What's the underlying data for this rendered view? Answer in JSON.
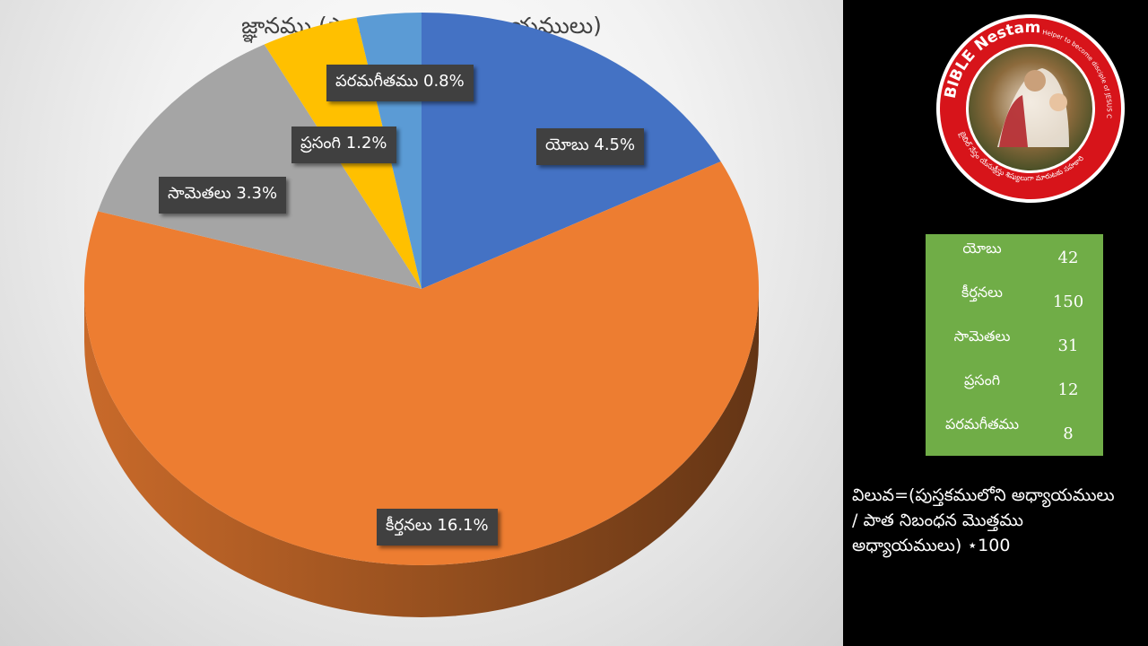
{
  "chart_data": {
    "type": "pie",
    "title": "జ్ఞానము (పాత నిబంధన అధ్యాయములు)",
    "categories": [
      "యోబు",
      "కీర్తనలు",
      "సామెతలు",
      "ప్రసంగి",
      "పరమగీతము"
    ],
    "values": [
      4.5,
      16.1,
      3.3,
      1.2,
      0.8
    ],
    "data_labels": [
      "యోబు 4.5%",
      "కీర్తనలు 16.1%",
      "సామెతలు 3.3%",
      "ప్రసంగి 1.2%",
      "పరమగీతము 0.8%"
    ],
    "colors": [
      "#4472c4",
      "#ed7d31",
      "#a5a5a5",
      "#ffc000",
      "#5b9bd5"
    ]
  },
  "legend_table": {
    "rows": [
      {
        "name": "యోబు",
        "count": "42"
      },
      {
        "name": "కీర్తనలు",
        "count": "150"
      },
      {
        "name": "సామెతలు",
        "count": "31"
      },
      {
        "name": "ప్రసంగి",
        "count": "12"
      },
      {
        "name": "పరమగీతము",
        "count": "8"
      }
    ]
  },
  "formula": "విలువ=(పుస్తకములోని అధ్యాయములు\n/ పాత నిబంధన మొత్తము\nఅధ్యాయములు) ⋆100",
  "logo": {
    "top_text": "BIBLE Nestam",
    "side_text": "Helper to become disciple of JESUS CHRIST",
    "bottom_text": "బైబిల్ నేస్తం యేసుక్రీస్తు శిష్యులుగా మారుటకు సహకారి",
    "ring_color": "#d7141a"
  }
}
